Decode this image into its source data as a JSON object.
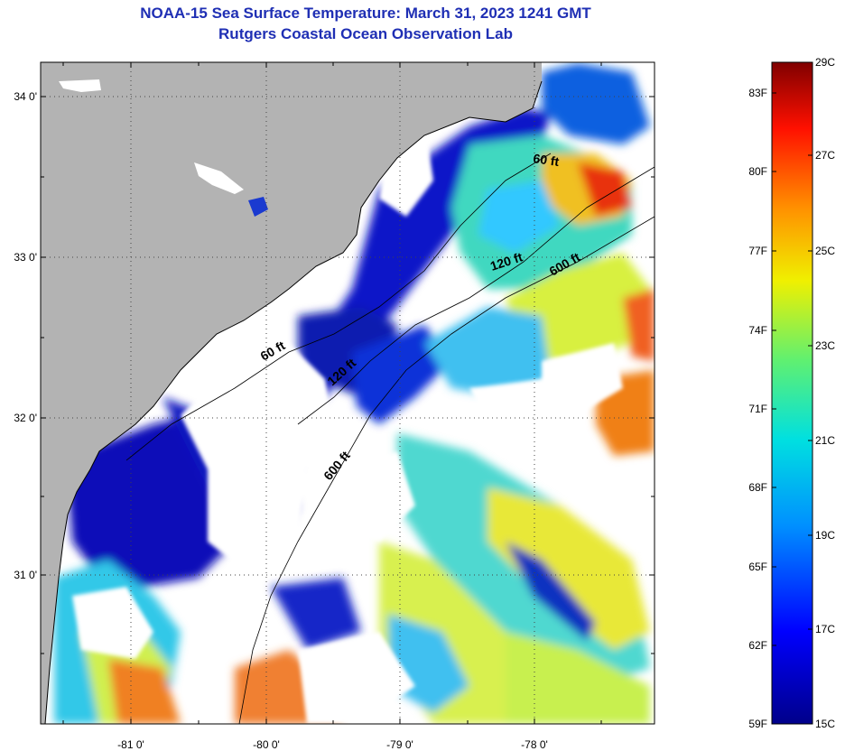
{
  "title": "NOAA-15 Sea Surface Temperature:  March 31, 2023 1241 GMT",
  "subtitle": "Rutgers Coastal Ocean Observation Lab",
  "lat_labels": [
    "34 0'",
    "33 0'",
    "32 0'",
    "31 0'"
  ],
  "lon_labels": [
    "-81 0'",
    "-80 0'",
    "-79 0'",
    "-78 0'"
  ],
  "isobath_labels": [
    "60 ft",
    "120 ft",
    "600 ft",
    "60 ft",
    "120 ft",
    "600 ft"
  ],
  "colorbar": {
    "fahrenheit": [
      "83F",
      "80F",
      "77F",
      "74F",
      "71F",
      "68F",
      "65F",
      "62F",
      "59F"
    ],
    "celsius": [
      "29C",
      "27C",
      "25C",
      "23C",
      "21C",
      "19C",
      "17C",
      "15C"
    ],
    "range_c": [
      15,
      29
    ]
  },
  "colors": {
    "title": "#1f2fb4",
    "land": "#b3b3b3",
    "cloud": "#ffffff"
  }
}
